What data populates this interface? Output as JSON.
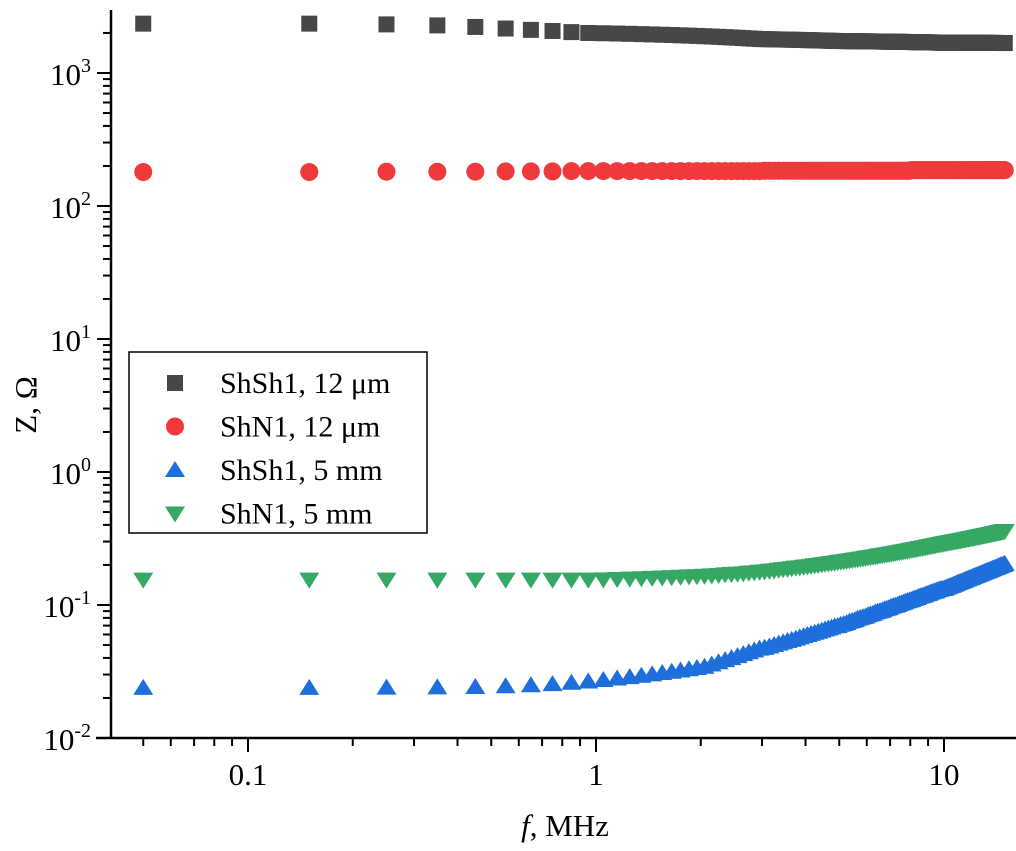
{
  "chart_data": {
    "type": "scatter",
    "title": "",
    "xlabel_italic": "f",
    "xlabel_rest": ", MHz",
    "ylabel": "Z, Ω",
    "xscale": "log",
    "yscale": "log",
    "xlim": [
      0.04,
      16
    ],
    "ylim": [
      0.01,
      2950
    ],
    "grid": false,
    "legend_placement": "center-left",
    "x_ticks": [
      {
        "value": 0.1,
        "label": "0.1"
      },
      {
        "value": 1,
        "label": "1"
      },
      {
        "value": 10,
        "label": "10"
      }
    ],
    "y_ticks": [
      {
        "value": 0.01,
        "base": "10",
        "exp": "-2"
      },
      {
        "value": 0.1,
        "base": "10",
        "exp": "-1"
      },
      {
        "value": 1,
        "base": "10",
        "exp": "0"
      },
      {
        "value": 10,
        "base": "10",
        "exp": "1"
      },
      {
        "value": 100,
        "base": "10",
        "exp": "2"
      },
      {
        "value": 1000,
        "base": "10",
        "exp": "3"
      }
    ],
    "x": [
      0.05,
      0.15,
      0.25,
      0.35,
      0.45,
      0.55,
      0.65,
      0.75,
      0.85,
      0.95,
      1.05,
      1.15,
      1.25,
      1.35,
      1.45,
      1.55,
      1.65,
      1.75,
      1.85,
      1.95,
      2.05,
      2.15,
      2.25,
      2.35,
      2.45,
      2.55,
      2.65,
      2.75,
      2.85,
      2.95,
      3.05,
      3.15,
      3.25,
      3.35,
      3.45,
      3.55,
      3.65,
      3.75,
      3.85,
      3.95,
      4.05,
      4.15,
      4.25,
      4.35,
      4.45,
      4.55,
      4.65,
      4.75,
      4.85,
      4.95,
      5.05,
      5.15,
      5.25,
      5.35,
      5.45,
      5.55,
      5.65,
      5.75,
      5.85,
      5.95,
      6.05,
      6.15,
      6.25,
      6.35,
      6.45,
      6.55,
      6.65,
      6.75,
      6.85,
      6.95,
      7.05,
      7.15,
      7.25,
      7.35,
      7.45,
      7.55,
      7.65,
      7.75,
      7.85,
      7.95,
      8.05,
      8.15,
      8.25,
      8.35,
      8.45,
      8.55,
      8.65,
      8.75,
      8.85,
      8.95,
      9.05,
      9.15,
      9.25,
      9.35,
      9.45,
      9.55,
      9.65,
      9.75,
      9.85,
      9.95,
      10.05,
      10.15,
      10.25,
      10.35,
      10.45,
      10.55,
      10.65,
      10.75,
      10.85,
      10.95,
      11.05,
      11.15,
      11.25,
      11.35,
      11.45,
      11.55,
      11.65,
      11.75,
      11.85,
      11.95,
      12.05,
      12.15,
      12.25,
      12.35,
      12.45,
      12.55,
      12.65,
      12.75,
      12.85,
      12.95,
      13.05,
      13.15,
      13.25,
      13.35,
      13.45,
      13.55,
      13.65,
      13.75,
      13.85,
      13.95,
      14.05,
      14.15,
      14.25,
      14.35,
      14.45,
      14.55,
      14.65,
      14.75,
      14.85,
      14.95
    ],
    "series": [
      {
        "name": "ShSh1, 12 μm",
        "marker": "square",
        "color": "#474747",
        "values": [
          2350,
          2350,
          2320,
          2280,
          2220,
          2160,
          2110,
          2070,
          2030,
          2000,
          1990,
          1980,
          1970,
          1960,
          1950,
          1940,
          1930,
          1920,
          1910,
          1900,
          1890,
          1880,
          1870,
          1860,
          1850,
          1840,
          1830,
          1820,
          1810,
          1800,
          1797,
          1794,
          1791,
          1788,
          1785,
          1782,
          1779,
          1776,
          1773,
          1770,
          1767,
          1764,
          1761,
          1758,
          1755,
          1752,
          1749,
          1746,
          1743,
          1740,
          1739,
          1738,
          1737,
          1736,
          1735,
          1734,
          1733,
          1732,
          1731,
          1730,
          1729,
          1728,
          1727,
          1726,
          1725,
          1724,
          1723,
          1722,
          1721,
          1720,
          1719,
          1718,
          1717,
          1716,
          1715,
          1714,
          1713,
          1712,
          1711,
          1710,
          1709,
          1708,
          1707,
          1706,
          1705,
          1704,
          1703,
          1702,
          1701,
          1700,
          1699,
          1698,
          1697,
          1696,
          1695,
          1694,
          1693,
          1692,
          1691,
          1690,
          1690,
          1690,
          1690,
          1690,
          1689,
          1689,
          1689,
          1689,
          1689,
          1688,
          1688,
          1688,
          1688,
          1688,
          1687,
          1687,
          1687,
          1687,
          1687,
          1686,
          1686,
          1686,
          1686,
          1686,
          1685,
          1685,
          1685,
          1685,
          1685,
          1684,
          1684,
          1684,
          1684,
          1684,
          1683,
          1683,
          1683,
          1683,
          1683,
          1682,
          1682,
          1682,
          1682,
          1682,
          1681,
          1681,
          1681,
          1681,
          1680,
          1680
        ]
      },
      {
        "name": "ShN1, 12 μm",
        "marker": "circle",
        "color": "#f0393c",
        "values": [
          180,
          180,
          181,
          181,
          181,
          182,
          182,
          182,
          183,
          183,
          183,
          183,
          183,
          183,
          183,
          183,
          183,
          183,
          183,
          183,
          183,
          183,
          183,
          183,
          183,
          183,
          183,
          183,
          183,
          183,
          184,
          184,
          184,
          184,
          184,
          184,
          184,
          184,
          184,
          184,
          184,
          184,
          184,
          184,
          184,
          184,
          184,
          184,
          184,
          184,
          184,
          184,
          184,
          184,
          184,
          184,
          184,
          184,
          184,
          184,
          184,
          184,
          184,
          184,
          184,
          184,
          184,
          184,
          184,
          184,
          184,
          184,
          184,
          184,
          184,
          184,
          184,
          184,
          184,
          184,
          186,
          186,
          186,
          186,
          186,
          186,
          186,
          186,
          186,
          186,
          186,
          186,
          186,
          186,
          186,
          186,
          186,
          186,
          186,
          186,
          186,
          186,
          186,
          186,
          186,
          186,
          186,
          186,
          186,
          186,
          186,
          186,
          186,
          186,
          186,
          186,
          186,
          186,
          186,
          186,
          186,
          186,
          186,
          186,
          186,
          186,
          186,
          186,
          186,
          186,
          186,
          186,
          186,
          186,
          186,
          186,
          186,
          186,
          186,
          186,
          186,
          186,
          186,
          186,
          186,
          186,
          186,
          186,
          186,
          186
        ]
      },
      {
        "name": "ShSh1, 5 mm",
        "marker": "triangle-up",
        "color": "#1e6fdb",
        "values": [
          0.0238,
          0.0238,
          0.0239,
          0.024,
          0.0242,
          0.0245,
          0.0249,
          0.0254,
          0.026,
          0.0266,
          0.0273,
          0.028,
          0.0287,
          0.0294,
          0.0301,
          0.0308,
          0.0315,
          0.0322,
          0.0329,
          0.0336,
          0.0343,
          0.0357,
          0.0371,
          0.0385,
          0.0399,
          0.0413,
          0.0427,
          0.0441,
          0.0455,
          0.047,
          0.0476,
          0.0488,
          0.05,
          0.0512,
          0.0524,
          0.0536,
          0.0547,
          0.0559,
          0.0571,
          0.0583,
          0.0595,
          0.0607,
          0.0619,
          0.063,
          0.0642,
          0.0654,
          0.0666,
          0.0678,
          0.069,
          0.0695,
          0.071,
          0.072,
          0.073,
          0.075,
          0.076,
          0.077,
          0.079,
          0.08,
          0.081,
          0.082,
          0.084,
          0.085,
          0.086,
          0.088,
          0.089,
          0.09,
          0.091,
          0.093,
          0.094,
          0.095,
          0.097,
          0.098,
          0.099,
          0.1,
          0.102,
          0.103,
          0.104,
          0.106,
          0.107,
          0.108,
          0.109,
          0.111,
          0.112,
          0.113,
          0.115,
          0.116,
          0.117,
          0.118,
          0.12,
          0.121,
          0.122,
          0.124,
          0.125,
          0.126,
          0.127,
          0.129,
          0.13,
          0.131,
          0.132,
          0.132,
          0.133,
          0.135,
          0.136,
          0.138,
          0.139,
          0.14,
          0.142,
          0.143,
          0.145,
          0.146,
          0.148,
          0.149,
          0.15,
          0.152,
          0.153,
          0.155,
          0.156,
          0.158,
          0.159,
          0.16,
          0.162,
          0.163,
          0.165,
          0.166,
          0.168,
          0.169,
          0.17,
          0.172,
          0.173,
          0.175,
          0.176,
          0.178,
          0.179,
          0.18,
          0.182,
          0.183,
          0.185,
          0.186,
          0.188,
          0.189,
          0.19,
          0.192,
          0.193,
          0.195,
          0.196,
          0.198,
          0.199,
          0.2,
          0.202,
          0.204
        ]
      },
      {
        "name": "ShN1, 5 mm",
        "marker": "triangle-down",
        "color": "#35a865",
        "values": [
          0.155,
          0.155,
          0.155,
          0.155,
          0.155,
          0.155,
          0.155,
          0.155,
          0.155,
          0.155,
          0.156,
          0.157,
          0.158,
          0.159,
          0.16,
          0.161,
          0.162,
          0.163,
          0.164,
          0.165,
          0.166,
          0.167,
          0.168,
          0.17,
          0.171,
          0.172,
          0.173,
          0.175,
          0.176,
          0.178,
          0.179,
          0.181,
          0.182,
          0.184,
          0.186,
          0.187,
          0.189,
          0.191,
          0.192,
          0.194,
          0.195,
          0.197,
          0.199,
          0.2,
          0.202,
          0.204,
          0.205,
          0.207,
          0.208,
          0.21,
          0.212,
          0.213,
          0.215,
          0.216,
          0.218,
          0.22,
          0.221,
          0.223,
          0.224,
          0.226,
          0.228,
          0.229,
          0.231,
          0.232,
          0.234,
          0.236,
          0.237,
          0.239,
          0.24,
          0.242,
          0.244,
          0.245,
          0.247,
          0.248,
          0.25,
          0.252,
          0.253,
          0.255,
          0.256,
          0.258,
          0.26,
          0.261,
          0.263,
          0.264,
          0.266,
          0.268,
          0.269,
          0.271,
          0.272,
          0.274,
          0.276,
          0.277,
          0.279,
          0.28,
          0.282,
          0.284,
          0.285,
          0.287,
          0.288,
          0.29,
          0.291,
          0.293,
          0.294,
          0.296,
          0.297,
          0.298,
          0.3,
          0.301,
          0.303,
          0.304,
          0.305,
          0.307,
          0.308,
          0.31,
          0.311,
          0.312,
          0.314,
          0.315,
          0.317,
          0.318,
          0.319,
          0.321,
          0.322,
          0.324,
          0.325,
          0.326,
          0.328,
          0.329,
          0.331,
          0.332,
          0.333,
          0.335,
          0.336,
          0.338,
          0.339,
          0.34,
          0.342,
          0.343,
          0.345,
          0.346,
          0.347,
          0.349,
          0.35,
          0.352,
          0.353,
          0.354,
          0.356,
          0.357,
          0.359,
          0.36
        ]
      }
    ]
  }
}
